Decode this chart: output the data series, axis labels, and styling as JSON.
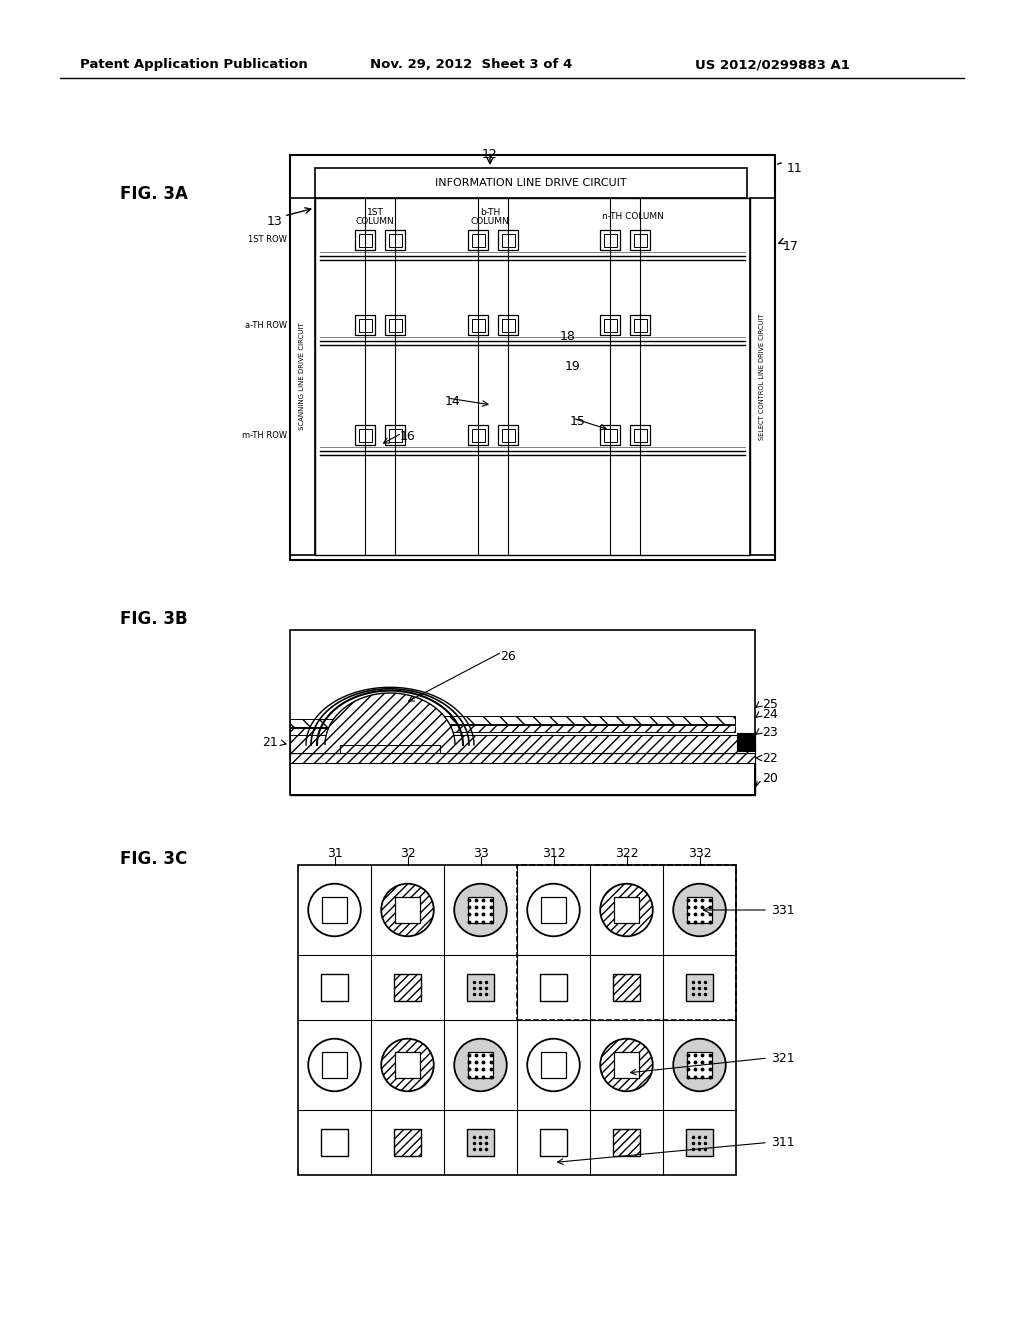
{
  "bg_color": "#ffffff",
  "header_left": "Patent Application Publication",
  "header_center": "Nov. 29, 2012  Sheet 3 of 4",
  "header_right": "US 2012/0299883 A1"
}
